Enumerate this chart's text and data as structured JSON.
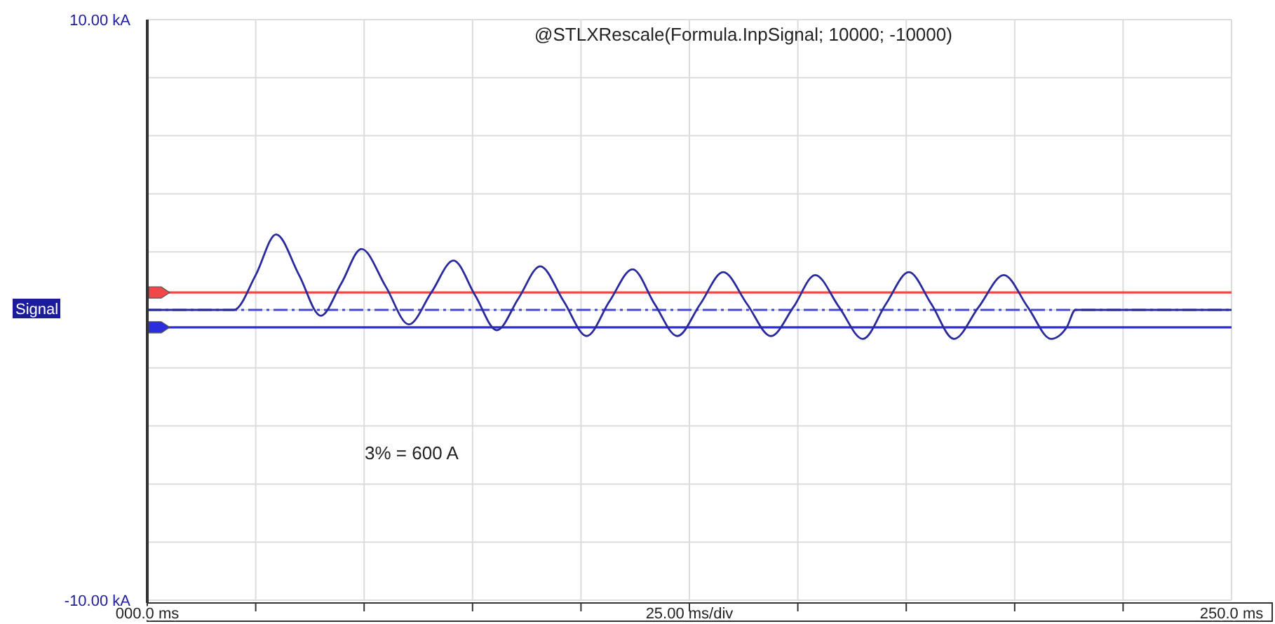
{
  "chart_data": {
    "type": "line",
    "title": "@STLXRescale(Formula.InpSignal; 10000; -10000)",
    "ylabel": "Signal",
    "x": [
      0,
      20,
      25,
      29.7,
      35,
      40,
      44.7,
      49.4,
      55,
      60.3,
      65.5,
      70.6,
      75.6,
      80.6,
      85.6,
      90.6,
      96,
      101.3,
      106.6,
      111.9,
      117,
      122.2,
      127.5,
      132.8,
      138.3,
      143.8,
      149,
      154,
      159.5,
      165,
      170.3,
      175.6,
      180.8,
      186,
      191.7,
      197.5,
      203,
      208.4,
      212,
      214,
      250
    ],
    "series": [
      {
        "color": "#2a2a9c",
        "values": [
          0,
          0,
          1.2,
          2.6,
          1.2,
          -0.2,
          0.9,
          2.1,
          0.8,
          -0.5,
          0.6,
          1.7,
          0.5,
          -0.7,
          0.4,
          1.5,
          0.3,
          -0.9,
          0.3,
          1.4,
          0.2,
          -0.9,
          0.2,
          1.3,
          0.2,
          -0.9,
          0.1,
          1.2,
          0.1,
          -1.0,
          0.2,
          1.3,
          0.2,
          -1.0,
          0.1,
          1.2,
          0.1,
          -1.0,
          -0.6,
          0,
          0
        ]
      }
    ],
    "xlim": [
      0,
      250
    ],
    "xticks": [
      {
        "value": 0,
        "label": "000.0 ms"
      },
      {
        "value": 25,
        "label": null
      },
      {
        "value": 50,
        "label": null
      },
      {
        "value": 75,
        "label": null
      },
      {
        "value": 100,
        "label": null
      },
      {
        "value": 125,
        "label": null
      },
      {
        "value": 150,
        "label": null
      },
      {
        "value": 175,
        "label": null
      },
      {
        "value": 200,
        "label": null
      },
      {
        "value": 225,
        "label": null
      },
      {
        "value": 250,
        "label": "250.0 ms"
      }
    ],
    "ylim": [
      -10,
      10
    ],
    "yticks": [
      {
        "value": -10,
        "label": "-10.00 kA"
      },
      {
        "value": -8,
        "label": null
      },
      {
        "value": -6,
        "label": null
      },
      {
        "value": -4,
        "label": null
      },
      {
        "value": -2,
        "label": null
      },
      {
        "value": 0,
        "label": null
      },
      {
        "value": 2,
        "label": null
      },
      {
        "value": 4,
        "label": null
      },
      {
        "value": 6,
        "label": null
      },
      {
        "value": 8,
        "label": null
      },
      {
        "value": 10,
        "label": "10.00 kA"
      }
    ],
    "xlabel": "25.00 ms/div",
    "grid": true,
    "marker": "none",
    "line_style": "solid",
    "ref_lines": [
      {
        "axis": "y",
        "value": 0.6,
        "color": "#f04848",
        "line_style": "solid"
      },
      {
        "axis": "y",
        "value": 0,
        "color": "#4848c8",
        "line_style": "dashed"
      },
      {
        "axis": "y",
        "value": -0.6,
        "color": "#2c2ce0",
        "line_style": "solid"
      }
    ],
    "annotations": [
      "3% = 600 A"
    ]
  }
}
